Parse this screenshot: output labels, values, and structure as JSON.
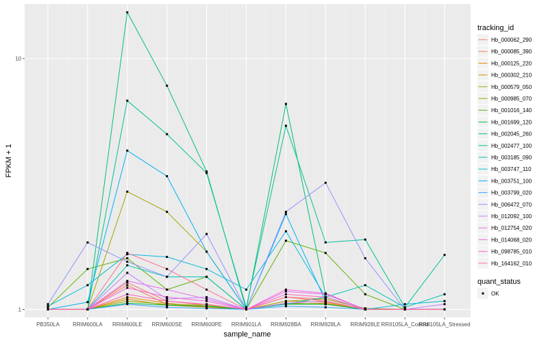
{
  "chart_data": {
    "type": "line",
    "xlabel": "sample_name",
    "ylabel": "FPKM + 1",
    "y_scale": "log10",
    "ylim": [
      0.93,
      16.5
    ],
    "y_ticks": [
      1,
      10
    ],
    "y_tick_labels": [
      "1",
      "10"
    ],
    "grid": true,
    "categories": [
      "PB350LA",
      "RRIM600LA",
      "RRIM600LE",
      "RRIM600SE",
      "RRIM600PE",
      "RRIM901LA",
      "RRIM928BA",
      "RRIM928LA",
      "RRIM928LE",
      "RRII105LA_Control",
      "RRII105LA_Stressed"
    ],
    "legend": {
      "title": "tracking_id",
      "position": "right",
      "quant_status_title": "quant_status",
      "quant_status_items": [
        "OK"
      ]
    },
    "series": [
      {
        "name": "Hb_000062_290",
        "color": "#F8766D",
        "values": [
          1.0,
          1.0,
          1.28,
          1.08,
          1.04,
          1.0,
          1.12,
          1.1,
          1.01,
          1.0,
          1.0
        ]
      },
      {
        "name": "Hb_000085_390",
        "color": "#EF7F47",
        "values": [
          1.0,
          1.0,
          1.25,
          1.05,
          1.03,
          1.0,
          1.08,
          1.07,
          1.0,
          1.0,
          1.0
        ]
      },
      {
        "name": "Hb_000125_220",
        "color": "#E38900",
        "values": [
          1.0,
          1.0,
          1.12,
          1.06,
          1.02,
          1.0,
          1.06,
          1.05,
          1.0,
          1.0,
          1.0
        ]
      },
      {
        "name": "Hb_000302_210",
        "color": "#D39200",
        "values": [
          1.0,
          1.0,
          1.1,
          1.04,
          1.02,
          1.0,
          1.05,
          1.06,
          1.0,
          1.0,
          1.0
        ]
      },
      {
        "name": "Hb_000579_050",
        "color": "#A3A500",
        "values": [
          1.0,
          1.0,
          2.95,
          2.45,
          1.7,
          1.0,
          1.08,
          1.1,
          1.01,
          1.0,
          1.0
        ]
      },
      {
        "name": "Hb_000985_070",
        "color": "#93AA00",
        "values": [
          1.0,
          1.0,
          1.08,
          1.05,
          1.04,
          1.0,
          1.06,
          1.05,
          1.0,
          1.0,
          1.0
        ]
      },
      {
        "name": "Hb_001016_140",
        "color": "#5EB300",
        "values": [
          1.02,
          1.45,
          1.6,
          1.2,
          1.35,
          1.0,
          1.88,
          1.68,
          1.15,
          1.0,
          1.0
        ]
      },
      {
        "name": "Hb_001699_120",
        "color": "#00BA38",
        "values": [
          1.0,
          1.0,
          1.06,
          1.04,
          1.03,
          1.0,
          1.05,
          1.05,
          1.0,
          1.0,
          1.0
        ]
      },
      {
        "name": "Hb_002045_260",
        "color": "#00BF74",
        "values": [
          1.0,
          1.0,
          15.3,
          7.8,
          3.55,
          1.0,
          6.6,
          1.15,
          1.0,
          1.0,
          1.0
        ]
      },
      {
        "name": "Hb_002477_100",
        "color": "#00C097",
        "values": [
          1.0,
          1.0,
          6.8,
          5.0,
          3.5,
          1.02,
          5.4,
          1.85,
          1.9,
          1.02,
          1.65
        ]
      },
      {
        "name": "Hb_003185_090",
        "color": "#00C0B8",
        "values": [
          1.0,
          1.0,
          1.5,
          1.35,
          1.35,
          1.0,
          1.05,
          1.12,
          1.25,
          1.02,
          1.15
        ]
      },
      {
        "name": "Hb_003747_110",
        "color": "#00BCD8",
        "values": [
          1.03,
          1.25,
          1.66,
          1.62,
          1.45,
          1.2,
          2.05,
          1.12,
          1.0,
          1.05,
          1.08
        ]
      },
      {
        "name": "Hb_003751_100",
        "color": "#00B0F6",
        "values": [
          1.0,
          1.07,
          4.3,
          3.4,
          1.7,
          1.0,
          2.4,
          1.08,
          1.0,
          1.0,
          1.0
        ]
      },
      {
        "name": "Hb_003799_020",
        "color": "#35A2FF",
        "values": [
          1.0,
          1.0,
          1.05,
          1.02,
          1.01,
          1.0,
          1.03,
          1.02,
          1.0,
          1.0,
          1.0
        ]
      },
      {
        "name": "Hb_006472_070",
        "color": "#9590FF",
        "values": [
          1.05,
          1.85,
          1.55,
          1.35,
          2.0,
          1.0,
          2.45,
          3.2,
          1.6,
          1.0,
          1.0
        ]
      },
      {
        "name": "Hb_012092_100",
        "color": "#C77CFF",
        "values": [
          1.0,
          1.0,
          1.4,
          1.1,
          1.12,
          1.0,
          1.06,
          1.08,
          1.0,
          1.0,
          1.05
        ]
      },
      {
        "name": "Hb_012754_020",
        "color": "#E76BF3",
        "values": [
          1.0,
          1.0,
          1.3,
          1.2,
          1.1,
          1.0,
          1.18,
          1.15,
          1.0,
          1.0,
          1.0
        ]
      },
      {
        "name": "Hb_014068_020",
        "color": "#F763E0",
        "values": [
          1.0,
          1.0,
          1.22,
          1.12,
          1.08,
          1.0,
          1.2,
          1.16,
          1.0,
          1.0,
          1.0
        ]
      },
      {
        "name": "Hb_098785_010",
        "color": "#FF62BC",
        "values": [
          1.0,
          1.0,
          1.15,
          1.08,
          1.05,
          1.0,
          1.15,
          1.12,
          1.0,
          1.0,
          1.0
        ]
      },
      {
        "name": "Hb_164162_010",
        "color": "#FF6C91",
        "values": [
          1.0,
          1.0,
          1.68,
          1.45,
          1.2,
          1.0,
          1.12,
          1.08,
          1.0,
          1.0,
          1.0
        ]
      }
    ]
  }
}
